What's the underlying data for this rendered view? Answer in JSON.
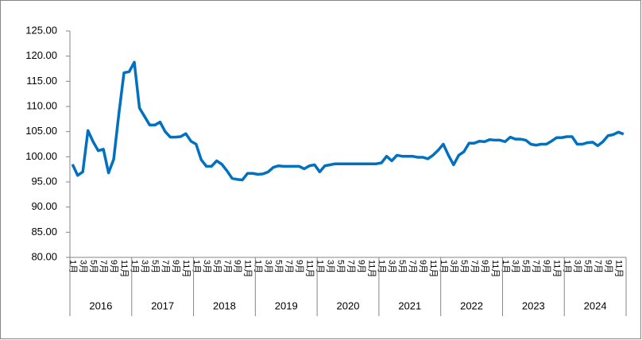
{
  "chart_data": {
    "type": "line",
    "categories": [
      "1月",
      null,
      "3月",
      null,
      "5月",
      null,
      "7月",
      null,
      "9月",
      null,
      "11月",
      null,
      "1月",
      null,
      "3月",
      null,
      "5月",
      null,
      "7月",
      null,
      "9月",
      null,
      "11月",
      null,
      "1月",
      null,
      "3月",
      null,
      "5月",
      null,
      "7月",
      null,
      "9月",
      null,
      "11月",
      null,
      "1月",
      null,
      "3月",
      null,
      "5月",
      null,
      "7月",
      null,
      "9月",
      null,
      "11月",
      null,
      "1月",
      null,
      "3月",
      null,
      "5月",
      null,
      "7月",
      null,
      "9月",
      null,
      "11月",
      null,
      "1月",
      null,
      "3月",
      null,
      "5月",
      null,
      "7月",
      null,
      "9月",
      null,
      "11月",
      null,
      "1月",
      null,
      "3月",
      null,
      "5月",
      null,
      "7月",
      null,
      "9月",
      null,
      "11月",
      null,
      "1月",
      null,
      "3月",
      null,
      "5月",
      null,
      "7月",
      null,
      "9月",
      null,
      "11月",
      null,
      "1月",
      null,
      "3月",
      null,
      "5月",
      null,
      "7月",
      null,
      "9月",
      null,
      "11月",
      null
    ],
    "years": [
      "2016",
      "2017",
      "2018",
      "2019",
      "2020",
      "2021",
      "2022",
      "2023",
      "2024"
    ],
    "series": [
      {
        "color": "#0070c0",
        "values": [
          98.5,
          96.3,
          97,
          105.2,
          103,
          101.2,
          101.5,
          96.8,
          99.5,
          108.5,
          116.7,
          116.9,
          118.8,
          109.7,
          108,
          106.3,
          106.3,
          106.9,
          105,
          103.9,
          103.9,
          104,
          104.6,
          103.1,
          102.5,
          99.4,
          98.1,
          98.1,
          99.2,
          98.5,
          97.2,
          95.7,
          95.5,
          95.4,
          96.7,
          96.7,
          96.5,
          96.6,
          97,
          97.9,
          98.2,
          98.1,
          98.1,
          98.1,
          98.1,
          97.6,
          98.2,
          98.4,
          97,
          98.2,
          98.4,
          98.6,
          98.6,
          98.6,
          98.6,
          98.6,
          98.6,
          98.6,
          98.6,
          98.6,
          98.8,
          100.1,
          99.2,
          100.3,
          100.1,
          100.1,
          100.1,
          99.9,
          99.9,
          99.6,
          100.3,
          101.3,
          102.5,
          100.3,
          98.4,
          100.3,
          101,
          102.7,
          102.7,
          103.1,
          103,
          103.4,
          103.3,
          103.3,
          103,
          103.9,
          103.5,
          103.5,
          103.3,
          102.5,
          102.3,
          102.5,
          102.5,
          103.1,
          103.8,
          103.8,
          104,
          104,
          102.5,
          102.5,
          102.8,
          102.9,
          102.2,
          103,
          104.2,
          104.4,
          104.9,
          104.5
        ]
      }
    ],
    "ylim": [
      80,
      125
    ],
    "yticks": [
      {
        "value": 80,
        "label": "80.00"
      },
      {
        "value": 85,
        "label": "85.00"
      },
      {
        "value": 90,
        "label": "90.00"
      },
      {
        "value": 95,
        "label": "95.00"
      },
      {
        "value": 100,
        "label": "100.00"
      },
      {
        "value": 105,
        "label": "105.00"
      },
      {
        "value": 110,
        "label": "110.00"
      },
      {
        "value": 115,
        "label": "115.00"
      },
      {
        "value": 120,
        "label": "120.00"
      },
      {
        "value": 125,
        "label": "125.00"
      }
    ],
    "grid": false
  }
}
